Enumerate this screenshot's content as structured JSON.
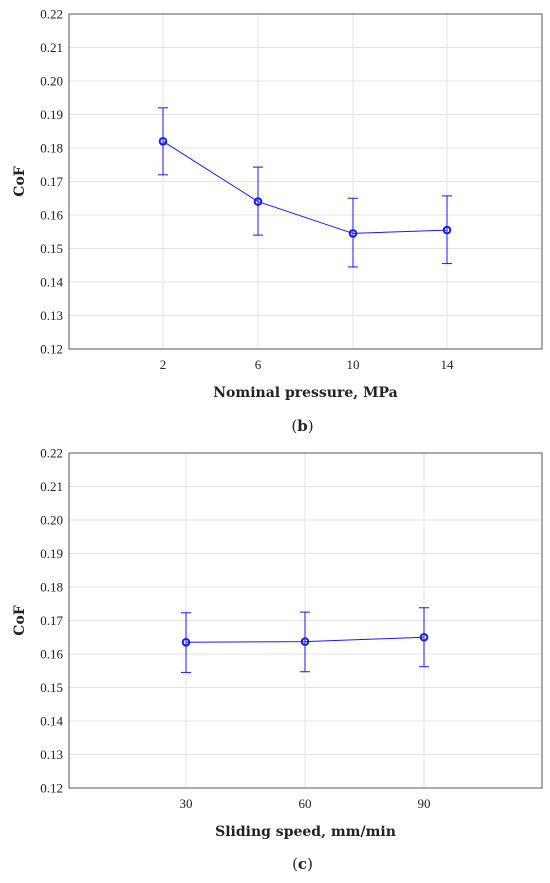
{
  "chart_data": [
    {
      "type": "line",
      "panel": "b",
      "xlabel": "Nominal pressure, MPa",
      "ylabel": "CoF",
      "ylim": [
        0.12,
        0.22
      ],
      "y_ticks": [
        "0.12",
        "0.13",
        "0.14",
        "0.15",
        "0.16",
        "0.17",
        "0.18",
        "0.19",
        "0.20",
        "0.21",
        "0.22"
      ],
      "categories": [
        "2",
        "6",
        "10",
        "14"
      ],
      "values": [
        0.182,
        0.164,
        0.1545,
        0.1555
      ],
      "error_low": [
        0.172,
        0.154,
        0.1445,
        0.1455
      ],
      "error_high": [
        0.192,
        0.1743,
        0.165,
        0.1657
      ],
      "grid": true,
      "color": "#1a1aee",
      "caption_open": "(",
      "caption_letter": "b",
      "caption_close": ")"
    },
    {
      "type": "line",
      "panel": "c",
      "xlabel": "Sliding speed, mm/min",
      "ylabel": "CoF",
      "ylim": [
        0.12,
        0.22
      ],
      "y_ticks": [
        "0.12",
        "0.13",
        "0.14",
        "0.15",
        "0.16",
        "0.17",
        "0.18",
        "0.19",
        "0.20",
        "0.21",
        "0.22"
      ],
      "categories": [
        "30",
        "60",
        "90"
      ],
      "values": [
        0.1635,
        0.1637,
        0.165
      ],
      "error_low": [
        0.1545,
        0.1547,
        0.1562
      ],
      "error_high": [
        0.1723,
        0.1725,
        0.1738
      ],
      "grid": true,
      "color": "#1a1aee",
      "caption_open": "(",
      "caption_letter": "c",
      "caption_close": ")"
    }
  ]
}
